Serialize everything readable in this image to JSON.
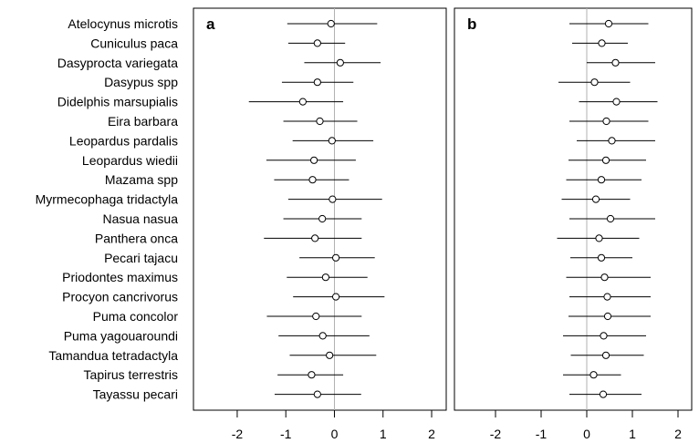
{
  "chart_data": {
    "type": "forest",
    "species": [
      "Atelocynus microtis",
      "Cuniculus paca",
      "Dasyprocta variegata",
      "Dasypus spp",
      "Didelphis marsupialis",
      "Eira barbara",
      "Leopardus pardalis",
      "Leopardus wiedii",
      "Mazama spp",
      "Myrmecophaga tridactyla",
      "Nasua nasua",
      "Panthera onca",
      "Pecari tajacu",
      "Priodontes maximus",
      "Procyon cancrivorus",
      "Puma concolor",
      "Puma yagouaroundi",
      "Tamandua tetradactyla",
      "Tapirus terrestris",
      "Tayassu pecari"
    ],
    "xlim": [
      -2.9,
      2.3
    ],
    "xticks": [
      -2,
      -1,
      0,
      1,
      2
    ],
    "xtick_labels": [
      "-2",
      "-1",
      "0",
      "1",
      "2"
    ],
    "reference_line": 0,
    "panels": [
      {
        "label": "a",
        "estimates": [
          -0.07,
          -0.35,
          0.12,
          -0.35,
          -0.65,
          -0.3,
          -0.05,
          -0.42,
          -0.45,
          -0.04,
          -0.25,
          -0.4,
          0.03,
          -0.18,
          0.03,
          -0.38,
          -0.24,
          -0.1,
          -0.47,
          -0.35
        ],
        "lower": [
          -0.97,
          -0.95,
          -0.62,
          -1.08,
          -1.76,
          -1.05,
          -0.86,
          -1.4,
          -1.24,
          -0.95,
          -1.05,
          -1.45,
          -0.72,
          -0.98,
          -0.85,
          -1.39,
          -1.15,
          -0.92,
          -1.17,
          -1.23
        ],
        "upper": [
          0.88,
          0.22,
          0.95,
          0.39,
          0.18,
          0.47,
          0.8,
          0.44,
          0.3,
          0.98,
          0.56,
          0.56,
          0.83,
          0.68,
          1.03,
          0.56,
          0.72,
          0.86,
          0.18,
          0.55
        ]
      },
      {
        "label": "b",
        "estimates": [
          0.48,
          0.33,
          0.63,
          0.17,
          0.65,
          0.43,
          0.55,
          0.42,
          0.32,
          0.2,
          0.52,
          0.27,
          0.32,
          0.39,
          0.45,
          0.46,
          0.37,
          0.42,
          0.15,
          0.36
        ],
        "lower": [
          -0.38,
          -0.32,
          0.0,
          -0.62,
          -0.17,
          -0.38,
          -0.22,
          -0.4,
          -0.45,
          -0.55,
          -0.38,
          -0.65,
          -0.36,
          -0.45,
          -0.38,
          -0.4,
          -0.52,
          -0.35,
          -0.52,
          -0.38
        ],
        "upper": [
          1.35,
          0.9,
          1.5,
          0.95,
          1.55,
          1.35,
          1.5,
          1.3,
          1.2,
          0.95,
          1.5,
          1.15,
          1.0,
          1.4,
          1.4,
          1.4,
          1.3,
          1.25,
          0.75,
          1.2
        ]
      }
    ]
  }
}
